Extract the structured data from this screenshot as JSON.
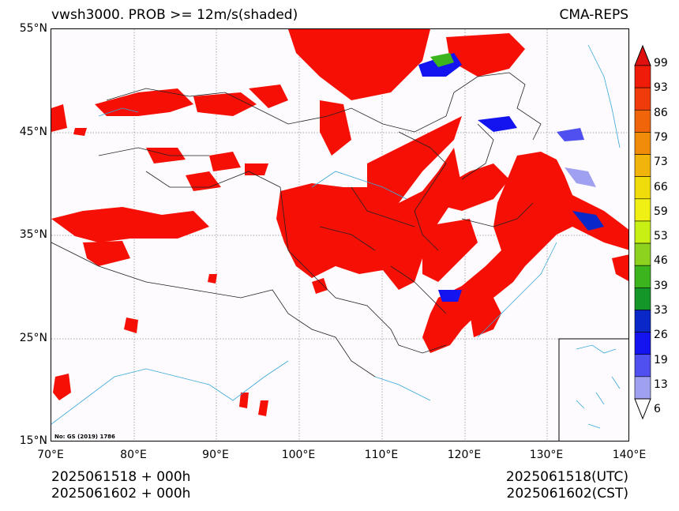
{
  "header": {
    "title_left": "vwsh3000. PROB >= 12m/s(shaded)",
    "title_right": "CMA-REPS"
  },
  "axes": {
    "y_labels": [
      "55°N",
      "45°N",
      "35°N",
      "25°N",
      "15°N"
    ],
    "x_labels": [
      "70°E",
      "80°E",
      "90°E",
      "100°E",
      "110°E",
      "120°E",
      "130°E",
      "140°E"
    ],
    "lat_range": [
      15,
      55
    ],
    "lon_range": [
      70,
      140
    ],
    "grid": "dotted"
  },
  "colorbar": {
    "labels": [
      "99",
      "93",
      "86",
      "79",
      "73",
      "66",
      "59",
      "53",
      "46",
      "39",
      "33",
      "26",
      "19",
      "13",
      "6"
    ],
    "colors": [
      "#f01c0a",
      "#f03c0a",
      "#f0640a",
      "#f08c0a",
      "#f0b40a",
      "#f0dc0a",
      "#f0f014",
      "#c8f014",
      "#8cd21e",
      "#3cb41e",
      "#149628",
      "#0a28c8",
      "#1414f0",
      "#5050f0",
      "#a0a0f0"
    ],
    "extend": "both"
  },
  "map": {
    "shaded_color": "#f50f05",
    "inset": "South China Sea"
  },
  "note": "No: GS (2019) 1786",
  "footer": {
    "left_line1": "2025061518  +  000h",
    "left_line2": "2025061602  +  000h",
    "right_line1": "2025061518(UTC)",
    "right_line2": "2025061602(CST)"
  }
}
